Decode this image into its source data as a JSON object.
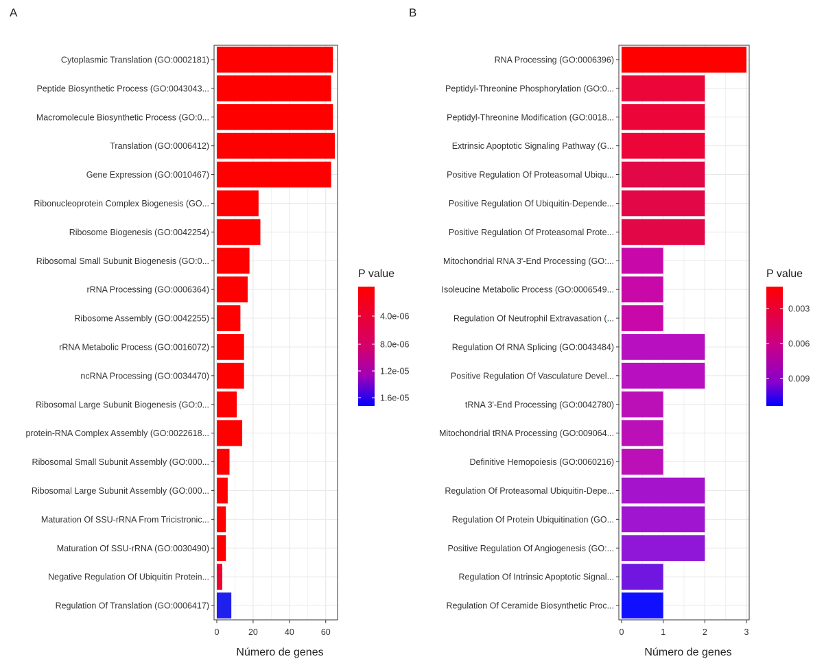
{
  "chart_data": [
    {
      "panel": "A",
      "type": "bar",
      "orientation": "horizontal",
      "xlabel": "Número de genes",
      "xlim": [
        0,
        65
      ],
      "xticks": [
        0,
        20,
        40,
        60
      ],
      "grid": true,
      "legend": {
        "title": "P value",
        "position": "right",
        "ticks": [
          "4.0e-06",
          "8.0e-06",
          "1.2e-05",
          "1.6e-05"
        ],
        "color_low_p": "#ff0000",
        "color_high_p": "#0000ff"
      },
      "categories": [
        "Cytoplasmic Translation (GO:0002181)",
        "Peptide Biosynthetic Process (GO:0043043...",
        "Macromolecule Biosynthetic Process (GO:0...",
        "Translation (GO:0006412)",
        "Gene Expression (GO:0010467)",
        "Ribonucleoprotein Complex Biogenesis (GO...",
        "Ribosome Biogenesis (GO:0042254)",
        "Ribosomal Small Subunit Biogenesis (GO:0...",
        "rRNA Processing (GO:0006364)",
        "Ribosome Assembly (GO:0042255)",
        "rRNA Metabolic Process (GO:0016072)",
        "ncRNA Processing (GO:0034470)",
        "Ribosomal Large Subunit Biogenesis (GO:0...",
        "protein-RNA Complex Assembly (GO:0022618...",
        "Ribosomal Small Subunit Assembly (GO:000...",
        "Ribosomal Large Subunit Assembly (GO:000...",
        "Maturation Of SSU-rRNA From Tricistronic...",
        "Maturation Of SSU-rRNA (GO:0030490)",
        "Negative Regulation Of Ubiquitin Protein...",
        "Regulation Of Translation (GO:0006417)"
      ],
      "values": [
        64,
        63,
        64,
        65,
        63,
        23,
        24,
        18,
        17,
        13,
        15,
        15,
        11,
        14,
        7,
        6,
        5,
        5,
        3,
        8
      ],
      "bar_colors": [
        "#ff0000",
        "#ff0000",
        "#ff0000",
        "#ff0000",
        "#ff0000",
        "#ff0000",
        "#ff0000",
        "#ff0000",
        "#ff0000",
        "#ff0000",
        "#ff0000",
        "#ff0000",
        "#ff0000",
        "#ff0000",
        "#ff0000",
        "#ff0000",
        "#ff0000",
        "#ff0000",
        "#f0002a",
        "#2020ee"
      ]
    },
    {
      "panel": "B",
      "type": "bar",
      "orientation": "horizontal",
      "xlabel": "Número de genes",
      "xlim": [
        0,
        3
      ],
      "xticks": [
        0,
        1,
        2,
        3
      ],
      "grid": true,
      "legend": {
        "title": "P value",
        "position": "right",
        "ticks": [
          "0.003",
          "0.006",
          "0.009"
        ],
        "color_low_p": "#ff0000",
        "color_high_p": "#0000ff"
      },
      "categories": [
        "RNA Processing (GO:0006396)",
        "Peptidyl-Threonine Phosphorylation (GO:0...",
        "Peptidyl-Threonine Modification (GO:0018...",
        "Extrinsic Apoptotic Signaling Pathway (G...",
        "Positive Regulation Of Proteasomal Ubiqu...",
        "Positive Regulation Of Ubiquitin-Depende...",
        "Positive Regulation Of Proteasomal Prote...",
        "Mitochondrial RNA 3'-End Processing (GO:...",
        "Isoleucine Metabolic Process (GO:0006549...",
        "Regulation Of Neutrophil Extravasation (...",
        "Regulation Of RNA Splicing (GO:0043484)",
        "Positive Regulation Of Vasculature Devel...",
        "tRNA 3'-End Processing (GO:0042780)",
        "Mitochondrial tRNA Processing (GO:009064...",
        "Definitive Hemopoiesis (GO:0060216)",
        "Regulation Of Proteasomal Ubiquitin-Depe...",
        "Regulation Of Protein Ubiquitination (GO...",
        "Positive Regulation Of Angiogenesis (GO:...",
        "Regulation Of Intrinsic Apoptotic Signal...",
        "Regulation Of Ceramide Biosynthetic Proc..."
      ],
      "values": [
        3,
        2,
        2,
        2,
        2,
        2,
        2,
        1,
        1,
        1,
        2,
        2,
        1,
        1,
        1,
        2,
        2,
        2,
        1,
        1
      ],
      "bar_colors": [
        "#ff0000",
        "#ec0538",
        "#ec0538",
        "#ec0538",
        "#e20848",
        "#e20848",
        "#e20848",
        "#c808a8",
        "#c808a8",
        "#c808a8",
        "#b810c0",
        "#b810c0",
        "#bb10b8",
        "#bb10b8",
        "#bb10b8",
        "#a514cc",
        "#a016d0",
        "#9016d8",
        "#7016e0",
        "#1010ff"
      ]
    }
  ]
}
